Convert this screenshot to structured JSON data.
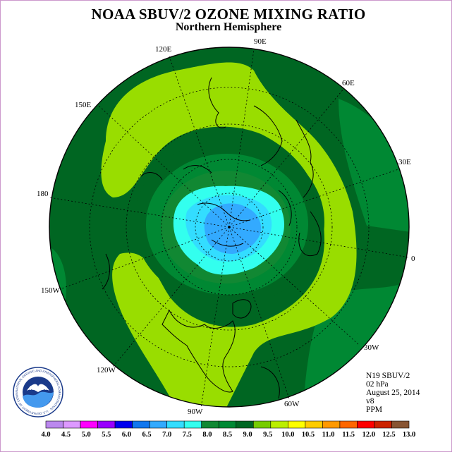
{
  "title": "NOAA SBUV/2 OZONE MIXING RATIO",
  "subtitle": "Northern Hemisphere",
  "longitude_labels": [
    "90E",
    "60E",
    "30E",
    "0",
    "30W",
    "60W",
    "90W",
    "120W",
    "150W",
    "180",
    "150E",
    "120E"
  ],
  "info": {
    "satellite": "N19 SBUV/2",
    "level": "02 hPa",
    "date": "August 25, 2014",
    "version": "v8",
    "units": "PPM"
  },
  "logo": {
    "name": "NOAA",
    "ring_text": "NATIONAL OCEANIC AND ATMOSPHERIC ADMINISTRATION · U.S. DEPARTMENT OF COMMERCE"
  },
  "colorbar": {
    "labels": [
      "4.0",
      "4.5",
      "5.0",
      "5.5",
      "6.0",
      "6.5",
      "7.0",
      "7.5",
      "8.0",
      "8.5",
      "9.0",
      "9.5",
      "10.0",
      "10.5",
      "11.0",
      "11.5",
      "12.0",
      "12.5",
      "13.0"
    ],
    "colors": [
      "#bb88ee",
      "#dd99ff",
      "#ff00ff",
      "#9900ff",
      "#0000ee",
      "#1177ee",
      "#33aaff",
      "#33ddff",
      "#33ffee",
      "#118833",
      "#008833",
      "#006622",
      "#77cc00",
      "#bbee00",
      "#ffff00",
      "#ffcc00",
      "#ff9900",
      "#ff6600",
      "#ff0000",
      "#cc2200",
      "#885533"
    ]
  }
}
